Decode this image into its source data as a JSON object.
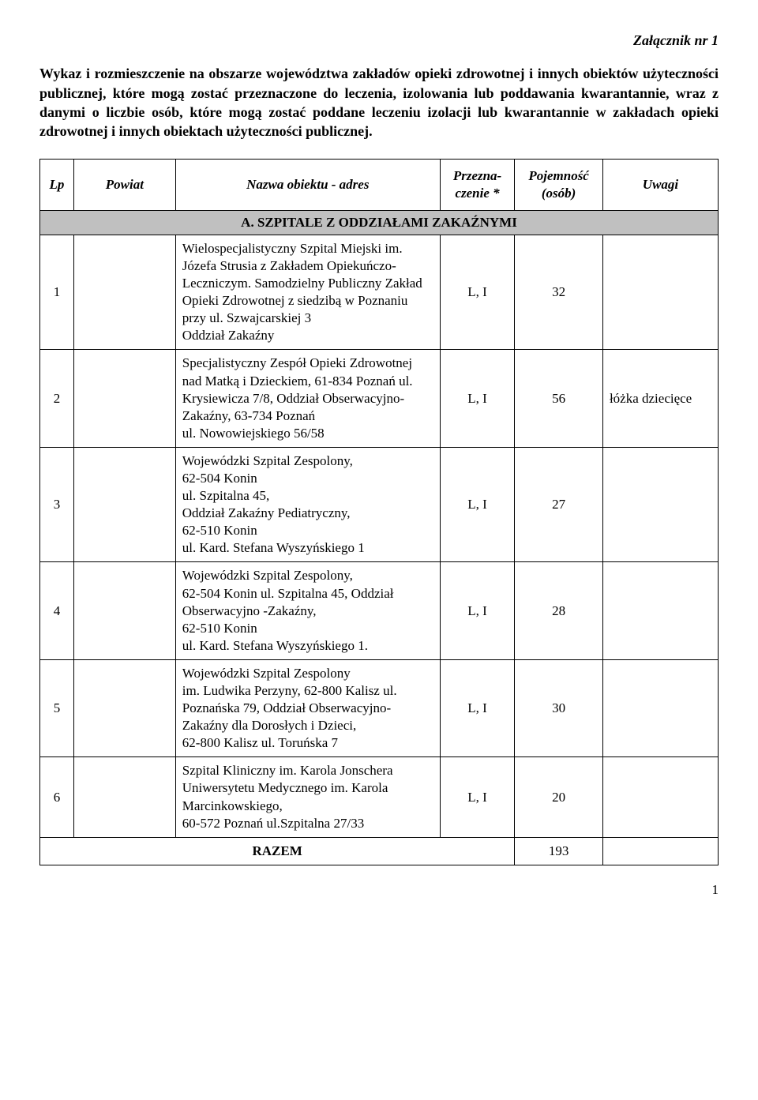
{
  "attachment_label": "Załącznik nr 1",
  "intro_text": "Wykaz i rozmieszczenie na obszarze województwa zakładów opieki zdrowotnej i innych obiektów użyteczności publicznej, które mogą zostać przeznaczone do leczenia, izolowania lub poddawania kwarantannie, wraz z danymi o liczbie osób, które mogą zostać poddane leczeniu izolacji lub kwarantannie w zakładach opieki zdrowotnej i innych obiektach użyteczności publicznej.",
  "columns": {
    "lp": "Lp",
    "powiat": "Powiat",
    "nazwa": "Nazwa obiektu - adres",
    "przeznaczenie": "Przezna-\nczenie *",
    "pojemnosc": "Pojemność\n(osób)",
    "uwagi": "Uwagi"
  },
  "section_header": "A. SZPITALE Z ODDZIAŁAMI ZAKAŹNYMI",
  "rows": [
    {
      "lp": "1",
      "powiat": "",
      "nazwa": "Wielospecjalistyczny Szpital Miejski im. Józefa Strusia z Zakładem Opiekuńczo-Leczniczym. Samodzielny Publiczny Zakład Opieki Zdrowotnej z siedzibą w Poznaniu przy ul. Szwajcarskiej 3\nOddział Zakaźny",
      "przeznaczenie": "L, I",
      "pojemnosc": "32",
      "uwagi": ""
    },
    {
      "lp": "2",
      "powiat": "",
      "nazwa": "Specjalistyczny Zespół Opieki Zdrowotnej nad Matką i Dzieckiem, 61-834 Poznań ul. Krysiewicza 7/8, Oddział Obserwacyjno-Zakaźny, 63-734 Poznań\nul. Nowowiejskiego 56/58",
      "przeznaczenie": "L, I",
      "pojemnosc": "56",
      "uwagi": "łóżka dziecięce"
    },
    {
      "lp": "3",
      "powiat": "",
      "nazwa": "Wojewódzki Szpital Zespolony,\n62-504 Konin\nul. Szpitalna 45,\nOddział Zakaźny Pediatryczny,\n62-510 Konin\nul. Kard. Stefana Wyszyńskiego 1",
      "przeznaczenie": "L, I",
      "pojemnosc": "27",
      "uwagi": ""
    },
    {
      "lp": "4",
      "powiat": "",
      "nazwa": "Wojewódzki Szpital Zespolony,\n62-504 Konin ul. Szpitalna 45, Oddział Obserwacyjno -Zakaźny,\n62-510 Konin\nul. Kard. Stefana Wyszyńskiego 1.",
      "przeznaczenie": "L, I",
      "pojemnosc": "28",
      "uwagi": ""
    },
    {
      "lp": "5",
      "powiat": "",
      "nazwa": "Wojewódzki Szpital Zespolony\nim. Ludwika Perzyny, 62-800 Kalisz ul. Poznańska 79, Oddział Obserwacyjno-Zakaźny dla Dorosłych i Dzieci,\n62-800 Kalisz ul. Toruńska 7",
      "przeznaczenie": "L, I",
      "pojemnosc": "30",
      "uwagi": ""
    },
    {
      "lp": "6",
      "powiat": "",
      "nazwa": "Szpital Kliniczny im. Karola Jonschera Uniwersytetu Medycznego im. Karola Marcinkowskiego,\n60-572 Poznań ul.Szpitalna 27/33",
      "przeznaczenie": "L, I",
      "pojemnosc": "20",
      "uwagi": ""
    }
  ],
  "total_label": "RAZEM",
  "total_value": "193",
  "page_number": "1"
}
